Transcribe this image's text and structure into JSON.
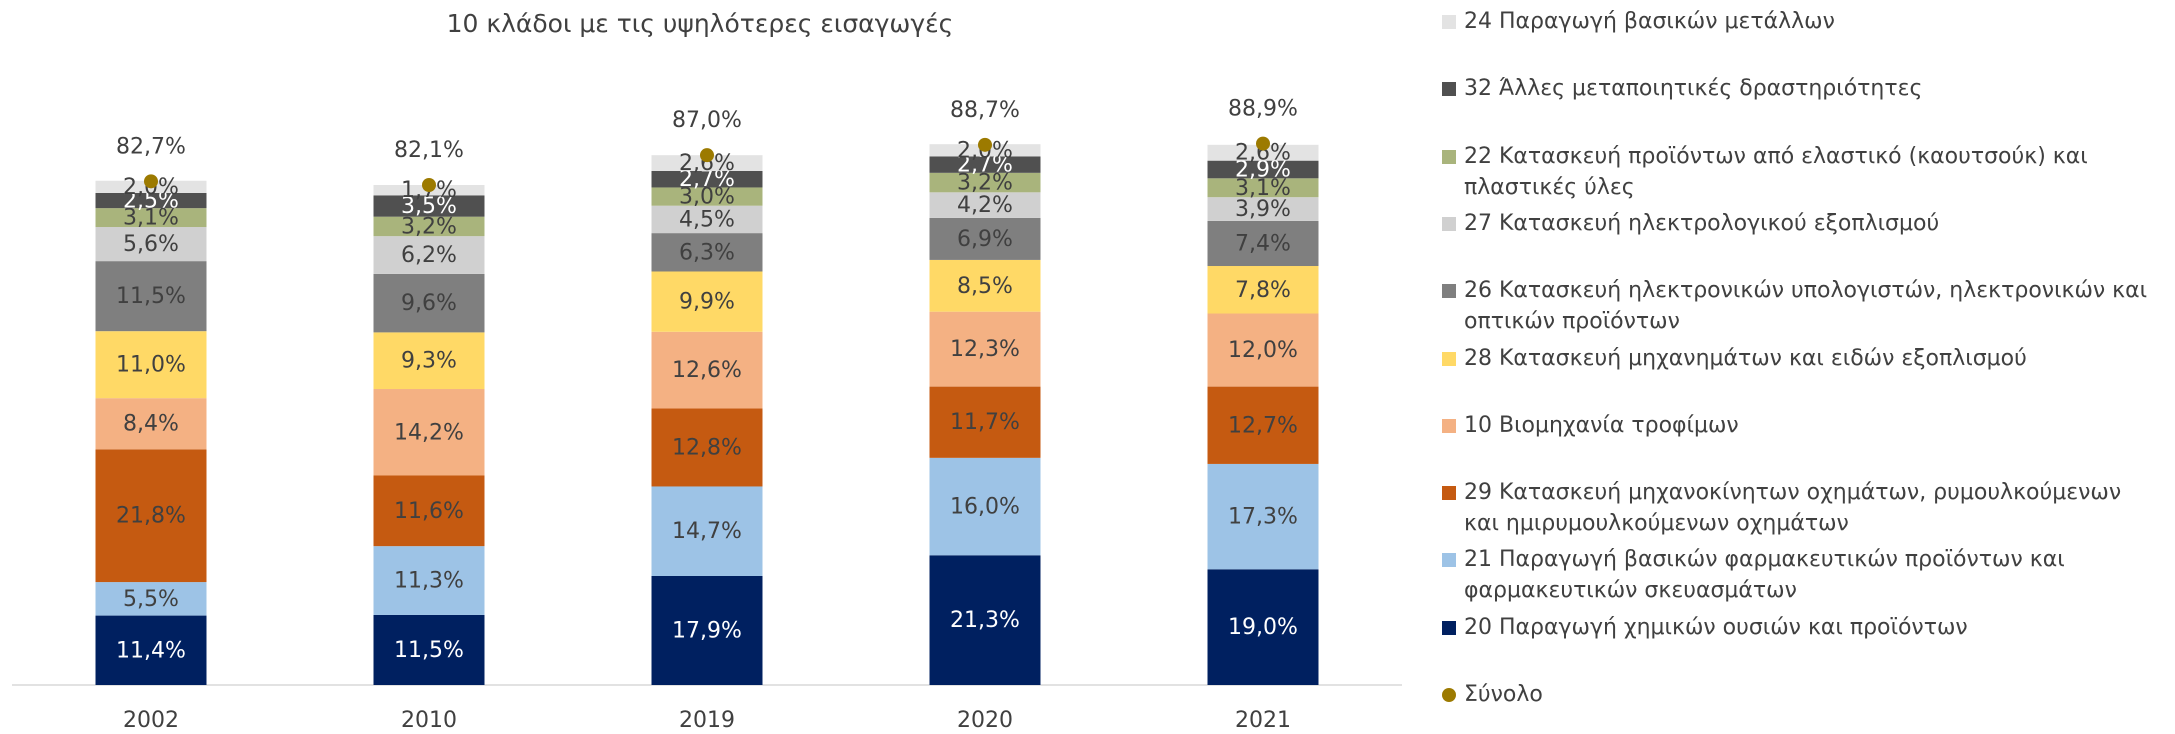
{
  "chart_data": {
    "type": "stacked_bar",
    "title": "10 κλάδοι με τις υψηλότερες εισαγωγές",
    "categories": [
      "2002",
      "2010",
      "2019",
      "2020",
      "2021"
    ],
    "ylim": [
      0,
      100
    ],
    "series": [
      {
        "name": "20 Παραγωγή χημικών ουσιών και προϊόντων",
        "color": "#002060",
        "values": [
          11.4,
          11.5,
          17.9,
          21.3,
          19.0
        ],
        "value_labels": [
          "11,4%",
          "11,5%",
          "17,9%",
          "21,3%",
          "19,0%"
        ]
      },
      {
        "name": "21 Παραγωγή βασικών φαρμακευτικών προϊόντων και φαρμακευτικών σκευασμάτων",
        "color": "#9dc3e6",
        "values": [
          5.5,
          11.3,
          14.7,
          16.0,
          17.3
        ],
        "value_labels": [
          "5,5%",
          "11,3%",
          "14,7%",
          "16,0%",
          "17,3%"
        ]
      },
      {
        "name": "29 Κατασκευή μηχανοκίνητων οχημάτων, ρυμουλκούμενων και ημιρυμουλκούμενων οχημάτων",
        "color": "#c55a11",
        "values": [
          21.8,
          11.6,
          12.8,
          11.7,
          12.7
        ],
        "value_labels": [
          "21,8%",
          "11,6%",
          "12,8%",
          "11,7%",
          "12,7%"
        ]
      },
      {
        "name": "10 Βιομηχανία τροφίμων",
        "color": "#f4b183",
        "values": [
          8.4,
          14.2,
          12.6,
          12.3,
          12.0
        ],
        "value_labels": [
          "8,4%",
          "14,2%",
          "12,6%",
          "12,3%",
          "12,0%"
        ]
      },
      {
        "name": "28 Κατασκευή μηχανημάτων και ειδών εξοπλισμού",
        "color": "#ffd966",
        "values": [
          11.0,
          9.3,
          9.9,
          8.5,
          7.8
        ],
        "value_labels": [
          "11,0%",
          "9,3%",
          "9,9%",
          "8,5%",
          "7,8%"
        ]
      },
      {
        "name": "26 Κατασκευή ηλεκτρονικών υπολογιστών, ηλεκτρονικών και οπτικών προϊόντων",
        "color": "#7f7f7f",
        "values": [
          11.5,
          9.6,
          6.3,
          6.9,
          7.4
        ],
        "value_labels": [
          "11,5%",
          "9,6%",
          "6,3%",
          "6,9%",
          "7,4%"
        ]
      },
      {
        "name": "27 Κατασκευή ηλεκτρολογικού εξοπλισμού",
        "color": "#d0d0d0",
        "values": [
          5.6,
          6.2,
          4.5,
          4.2,
          3.9
        ],
        "value_labels": [
          "5,6%",
          "6,2%",
          "4,5%",
          "4,2%",
          "3,9%"
        ]
      },
      {
        "name": "22 Κατασκευή προϊόντων από ελαστικό (καουτσούκ) και πλαστικές ύλες",
        "color": "#a9b47c",
        "values": [
          3.1,
          3.2,
          3.0,
          3.2,
          3.1
        ],
        "value_labels": [
          "3,1%",
          "3,2%",
          "3,0%",
          "3,2%",
          "3,1%"
        ]
      },
      {
        "name": "32 Άλλες μεταποιητικές δραστηριότητες",
        "color": "#505050",
        "values": [
          2.5,
          3.5,
          2.7,
          2.7,
          2.9
        ],
        "value_labels": [
          "2,5%",
          "3,5%",
          "2,7%",
          "2,7%",
          "2,9%"
        ]
      },
      {
        "name": "24 Παραγωγή βασικών μετάλλων",
        "color": "#e3e3e3",
        "values": [
          2.0,
          1.7,
          2.6,
          2.0,
          2.6
        ],
        "value_labels": [
          "2,0%",
          "1,7%",
          "2,6%",
          "2,0%",
          "2,6%"
        ]
      }
    ],
    "total": {
      "name": "Σύνολο",
      "color": "#9c7a00",
      "values": [
        82.7,
        82.1,
        87.0,
        88.7,
        88.9
      ],
      "value_labels": [
        "82,7%",
        "82,1%",
        "87,0%",
        "88,7%",
        "88,9%"
      ]
    }
  }
}
